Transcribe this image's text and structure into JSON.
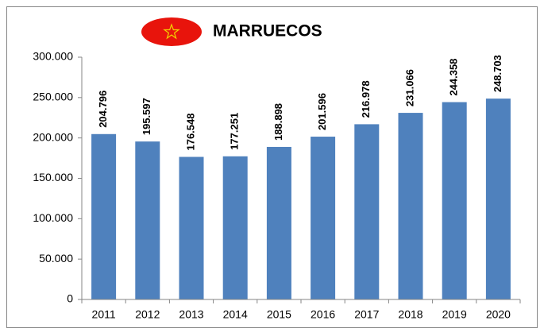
{
  "chart_data": {
    "type": "bar",
    "title": "MARRUECOS",
    "categories": [
      "2011",
      "2012",
      "2013",
      "2014",
      "2015",
      "2016",
      "2017",
      "2018",
      "2019",
      "2020"
    ],
    "values": [
      204796,
      195597,
      176548,
      177251,
      188898,
      201596,
      216978,
      231066,
      244358,
      248703
    ],
    "value_labels": [
      "204.796",
      "195.597",
      "176.548",
      "177.251",
      "188.898",
      "201.596",
      "216.978",
      "231.066",
      "244.358",
      "248.703"
    ],
    "color": "#4f81bd",
    "ylim": [
      0,
      300000
    ],
    "yticks": [
      0,
      {
        "value": 50000,
        "label": "50.000"
      },
      {
        "value": 100000,
        "label": "100.000"
      },
      {
        "value": 150000,
        "label": "150.000"
      },
      {
        "value": 200000,
        "label": "200.000"
      },
      {
        "value": 250000,
        "label": "250.000"
      },
      {
        "value": 300000,
        "label": "300.000"
      }
    ],
    "grid": false
  }
}
